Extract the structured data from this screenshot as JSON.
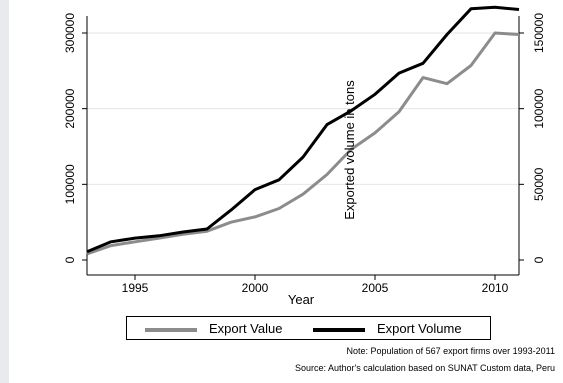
{
  "chart_data": {
    "type": "line",
    "title": "",
    "xlabel": "Year",
    "ylabel_left": "",
    "ylabel_right": "Exported volume in tons",
    "xlim": [
      1993,
      2011
    ],
    "ylim_left": [
      0,
      320000
    ],
    "ylim_right": [
      0,
      160000
    ],
    "x_ticks": [
      1995,
      2000,
      2005,
      2010
    ],
    "y_ticks_left": [
      0,
      100000,
      200000,
      300000
    ],
    "y_ticks_right": [
      0,
      50000,
      100000,
      150000
    ],
    "grid": true,
    "legend_position": "bottom",
    "x": [
      1993,
      1994,
      1995,
      1996,
      1997,
      1998,
      1999,
      2000,
      2001,
      2002,
      2003,
      2004,
      2005,
      2006,
      2007,
      2008,
      2009,
      2010,
      2011
    ],
    "series": [
      {
        "name": "Export Value",
        "axis": "left",
        "color": "#8c8c8c",
        "values": [
          8000,
          19000,
          24000,
          29000,
          34000,
          38000,
          50000,
          57000,
          68000,
          87000,
          113000,
          146000,
          168000,
          196000,
          241000,
          233000,
          257000,
          300000,
          298000
        ]
      },
      {
        "name": "Export Volume",
        "axis": "right",
        "color": "#000000",
        "values": [
          5500,
          12000,
          14500,
          16000,
          18500,
          20500,
          33000,
          46500,
          53000,
          68000,
          89500,
          98500,
          109500,
          123500,
          130000,
          149000,
          166000,
          167000,
          165500
        ]
      }
    ],
    "notes": [
      "Note: Population of 567 export firms over 1993-2011",
      "Source: Author's calculation based on SUNAT Custom data, Peru"
    ]
  }
}
